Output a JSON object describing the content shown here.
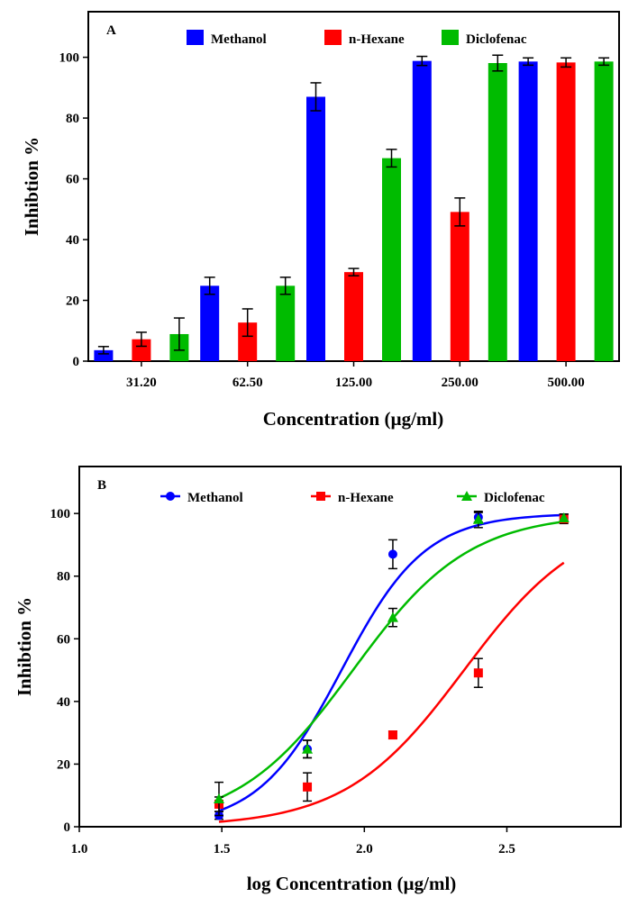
{
  "chart_data": [
    {
      "panel": "A",
      "type": "bar",
      "title": "",
      "xlabel": "Concentration (µg/ml)",
      "ylabel": "Inhibtion %",
      "categories": [
        "31.20",
        "62.50",
        "125.00",
        "250.00",
        "500.00"
      ],
      "ylim": [
        0,
        115
      ],
      "yticks": [
        0,
        20,
        40,
        60,
        80,
        100
      ],
      "legend_position": "top",
      "series": [
        {
          "name": "Methanol",
          "color": "#0000ff",
          "values": [
            3.6,
            24.8,
            87.0,
            98.8,
            98.6
          ],
          "errors": [
            1.2,
            2.8,
            4.6,
            1.5,
            1.2
          ]
        },
        {
          "name": "n-Hexane",
          "color": "#ff0000",
          "values": [
            7.2,
            12.7,
            29.3,
            49.1,
            98.3
          ],
          "errors": [
            2.3,
            4.5,
            1.2,
            4.6,
            1.5
          ]
        },
        {
          "name": "Diclofenac",
          "color": "#00bb00",
          "values": [
            8.9,
            24.8,
            66.8,
            98.1,
            98.6
          ],
          "errors": [
            5.3,
            2.8,
            2.9,
            2.6,
            1.2
          ]
        }
      ]
    },
    {
      "panel": "B",
      "type": "scatter",
      "title": "",
      "xlabel": "log Concentration (µg/ml)",
      "ylabel": "Inhibtion %",
      "xlim": [
        1.0,
        2.9
      ],
      "ylim": [
        0,
        115
      ],
      "xticks": [
        "1.0",
        "1.5",
        "2.0",
        "2.5"
      ],
      "yticks": [
        0,
        20,
        40,
        60,
        80,
        100
      ],
      "legend_position": "top",
      "series": [
        {
          "name": "Methanol",
          "color": "#0000ff",
          "marker": "circle",
          "x": [
            1.49,
            1.8,
            2.1,
            2.4,
            2.7
          ],
          "y": [
            3.6,
            24.8,
            87.0,
            98.8,
            98.6
          ],
          "errors": [
            1.2,
            2.8,
            4.6,
            1.5,
            1.2
          ],
          "fit": {
            "x0": 1.92,
            "slope": 6.8,
            "xrange": [
              1.49,
              2.7
            ]
          }
        },
        {
          "name": "n-Hexane",
          "color": "#ff0000",
          "marker": "square",
          "x": [
            1.49,
            1.8,
            2.1,
            2.4,
            2.7
          ],
          "y": [
            7.2,
            12.7,
            29.3,
            49.1,
            98.3
          ],
          "errors": [
            2.3,
            4.5,
            1.2,
            4.6,
            1.5
          ],
          "fit": {
            "x0": 2.35,
            "slope": 4.8,
            "xrange": [
              1.49,
              2.7
            ]
          }
        },
        {
          "name": "Diclofenac",
          "color": "#00bb00",
          "marker": "triangle",
          "x": [
            1.49,
            1.8,
            2.1,
            2.4,
            2.7
          ],
          "y": [
            8.9,
            24.8,
            66.8,
            98.1,
            98.6
          ],
          "errors": [
            5.3,
            2.8,
            2.9,
            2.6,
            1.2
          ],
          "fit": {
            "x0": 1.96,
            "slope": 4.9,
            "xrange": [
              1.49,
              2.7
            ]
          }
        }
      ]
    }
  ]
}
